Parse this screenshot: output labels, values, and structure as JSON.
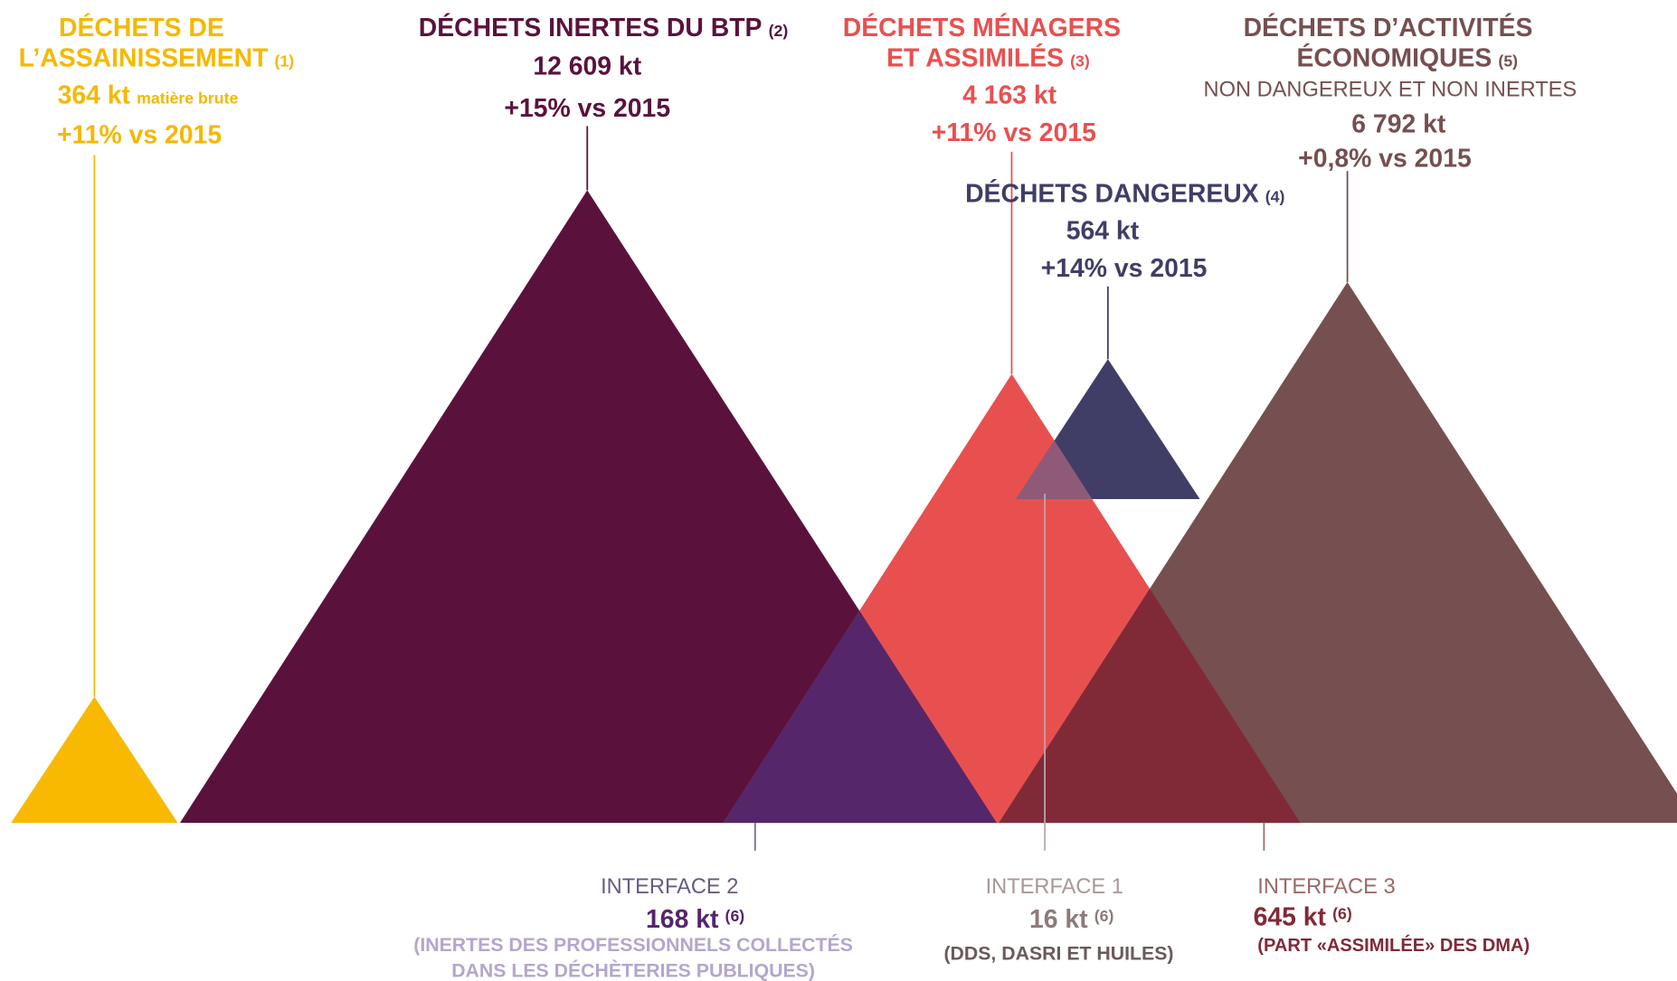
{
  "groups": [
    {
      "title": [
        "DÉCHETS DE",
        "L’ASSAINISSEMENT"
      ],
      "note": "(1)",
      "amount": "364 kt",
      "amount_note": "matière brute",
      "change": "+11% vs 2015"
    },
    {
      "title": [
        "DÉCHETS INERTES DU BTP"
      ],
      "note": "(2)",
      "amount": "12 609 kt",
      "change": "+15% vs 2015"
    },
    {
      "title": [
        "DÉCHETS MÉNAGERS",
        "ET ASSIMILÉS"
      ],
      "note": "(3)",
      "amount": "4 163 kt",
      "change": "+11% vs 2015"
    },
    {
      "title": [
        "DÉCHETS DANGEREUX"
      ],
      "note": "(4)",
      "amount": "564 kt",
      "change": "+14% vs 2015"
    },
    {
      "title": [
        "DÉCHETS D’ACTIVITÉS",
        "ÉCONOMIQUES"
      ],
      "note": "(5)",
      "subtitle": "NON DANGEREUX ET NON INERTES",
      "amount": "6 792 kt",
      "change": "+0,8% vs 2015"
    }
  ],
  "interfaces": [
    {
      "title": "INTERFACE 2",
      "amount": "168 kt",
      "note": "(6)",
      "detail": [
        "(INERTES DES PROFESSIONNELS COLLECTÉS",
        "DANS LES DÉCHÈTERIES PUBLIQUES)"
      ]
    },
    {
      "title": "INTERFACE 1",
      "amount": "16 kt",
      "note": "(6)",
      "detail": [
        "(DDS, DASRI ET HUILES)"
      ]
    },
    {
      "title": "INTERFACE 3",
      "amount": "645 kt",
      "note": "(6)",
      "detail": [
        "(PART «ASSIMILÉE» DES DMA)"
      ]
    }
  ]
}
